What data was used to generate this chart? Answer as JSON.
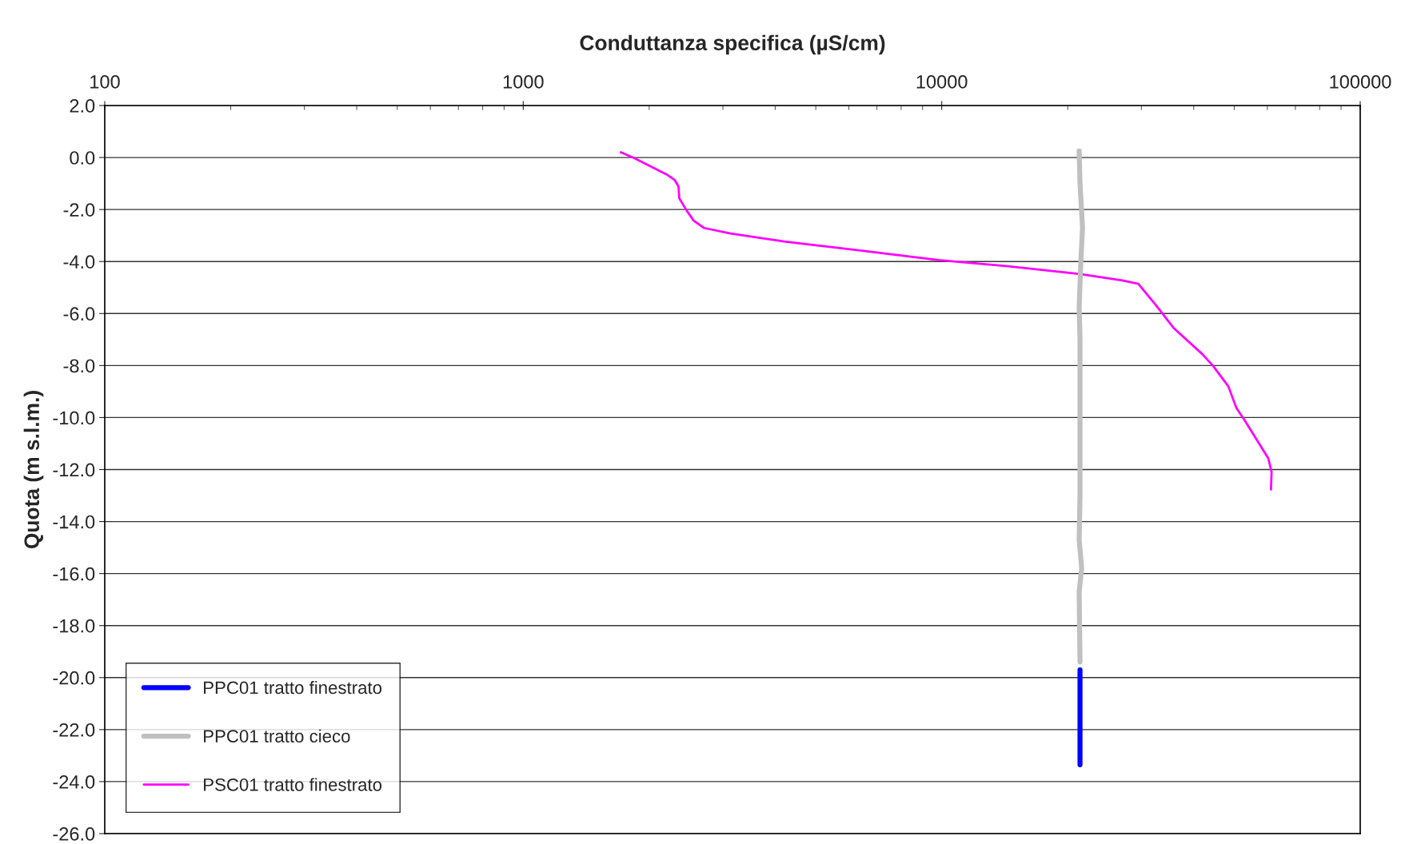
{
  "chart_data": {
    "type": "line",
    "xlabel": "Conduttanza specifica (µS/cm)",
    "ylabel": "Quota (m s.l.m.)",
    "log": "x",
    "xlim": [
      100,
      100000
    ],
    "xticks": [
      100,
      1000,
      10000,
      100000
    ],
    "ylim": [
      -26,
      2
    ],
    "yticks": [
      {
        "value": 2,
        "label": "2.0"
      },
      {
        "value": 0,
        "label": "0.0"
      },
      {
        "value": -2,
        "label": "-2.0"
      },
      {
        "value": -4,
        "label": "-4.0"
      },
      {
        "value": -6,
        "label": "-6.0"
      },
      {
        "value": -8,
        "label": "-8.0"
      },
      {
        "value": -10,
        "label": "-10.0"
      },
      {
        "value": -12,
        "label": "-12.0"
      },
      {
        "value": -14,
        "label": "-14.0"
      },
      {
        "value": -16,
        "label": "-16.0"
      },
      {
        "value": -18,
        "label": "-18.0"
      },
      {
        "value": -20,
        "label": "-20.0"
      },
      {
        "value": -22,
        "label": "-22.0"
      },
      {
        "value": -24,
        "label": "-24.0"
      },
      {
        "value": -26,
        "label": "-26.0"
      }
    ],
    "grid": "y",
    "legend": "bottom left",
    "marker": "none",
    "line_style": "solid",
    "series": [
      {
        "name": "PPC01 tratto finestrato",
        "color": "#0000ff",
        "x": [
          21400,
          21400
        ],
        "values": [
          -19.7,
          -23.35
        ]
      },
      {
        "name": "PPC01 tratto cieco",
        "color": "#c0c0c0",
        "x": [
          21300,
          21400,
          21700,
          21500,
          21300,
          21400,
          21400,
          21400,
          21300,
          21600,
          21300,
          21400
        ],
        "values": [
          0.25,
          -1.0,
          -2.7,
          -4.0,
          -5.75,
          -7.0,
          -10.0,
          -13.0,
          -14.7,
          -15.8,
          -16.7,
          -19.4
        ]
      },
      {
        "name": "PSC01 tratto finestrato",
        "color": "#ff00ff",
        "x": [
          1710,
          1845,
          2200,
          2300,
          2350,
          2360,
          2455,
          2555,
          2705,
          3127,
          4200,
          6325,
          9820,
          14400,
          21400,
          27000,
          29500,
          32500,
          35800,
          42000,
          44600,
          48400,
          50600,
          53300,
          60300,
          61400,
          61200
        ],
        "values": [
          0.2,
          -0.03,
          -0.65,
          -0.86,
          -1.11,
          -1.57,
          -2.03,
          -2.43,
          -2.71,
          -2.92,
          -3.23,
          -3.57,
          -3.94,
          -4.18,
          -4.48,
          -4.73,
          -4.86,
          -5.68,
          -6.55,
          -7.57,
          -8.03,
          -8.8,
          -9.63,
          -10.18,
          -11.57,
          -12.09,
          -12.77
        ]
      }
    ]
  }
}
